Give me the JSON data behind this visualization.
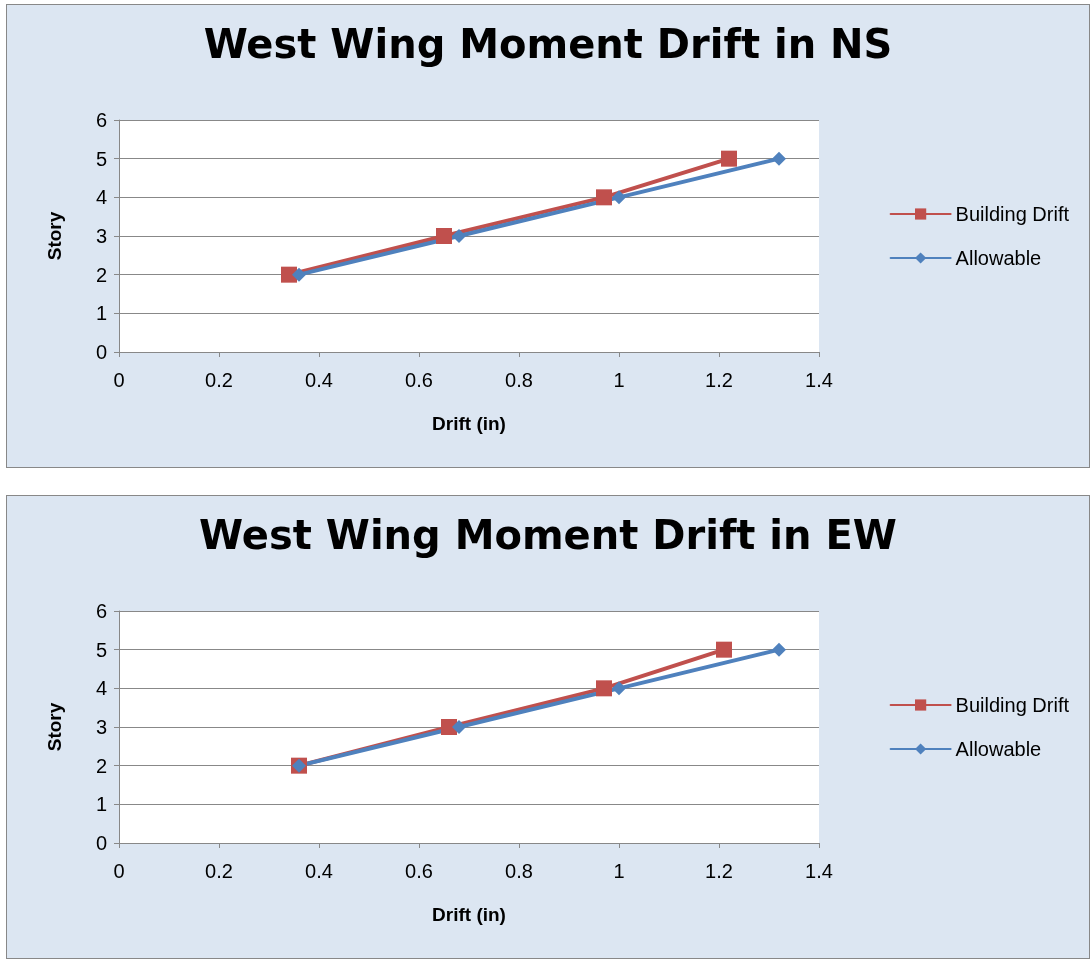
{
  "chart_data": [
    {
      "type": "line",
      "title": "West Wing Moment Drift in NS",
      "xlabel": "Drift (in)",
      "ylabel": "Story",
      "xlim": [
        0,
        1.4
      ],
      "xticks": [
        0,
        0.2,
        0.4,
        0.6,
        0.8,
        1,
        1.2,
        1.4
      ],
      "ylim": [
        0,
        6
      ],
      "yticks": [
        0,
        1,
        2,
        3,
        4,
        5,
        6
      ],
      "grid": "y",
      "legend": "right",
      "series": [
        {
          "name": "Building Drift",
          "color": "#c0504d",
          "marker": "square",
          "x": [
            0.34,
            0.65,
            0.97,
            1.22
          ],
          "values": [
            2,
            3,
            4,
            5
          ]
        },
        {
          "name": "Allowable",
          "color": "#4f81bd",
          "marker": "diamond",
          "x": [
            0.36,
            0.68,
            1,
            1.32
          ],
          "values": [
            2,
            3,
            4,
            5
          ]
        }
      ]
    },
    {
      "type": "line",
      "title": "West Wing Moment Drift in EW",
      "xlabel": "Drift (in)",
      "ylabel": "Story",
      "xlim": [
        0,
        1.4
      ],
      "xticks": [
        0,
        0.2,
        0.4,
        0.6,
        0.8,
        1,
        1.2,
        1.4
      ],
      "ylim": [
        0,
        6
      ],
      "yticks": [
        0,
        1,
        2,
        3,
        4,
        5,
        6
      ],
      "grid": "y",
      "legend": "right",
      "series": [
        {
          "name": "Building Drift",
          "color": "#c0504d",
          "marker": "square",
          "x": [
            0.36,
            0.66,
            0.97,
            1.21
          ],
          "values": [
            2,
            3,
            4,
            5
          ]
        },
        {
          "name": "Allowable",
          "color": "#4f81bd",
          "marker": "diamond",
          "x": [
            0.36,
            0.68,
            1,
            1.32
          ],
          "values": [
            2,
            3,
            4,
            5
          ]
        }
      ]
    }
  ]
}
